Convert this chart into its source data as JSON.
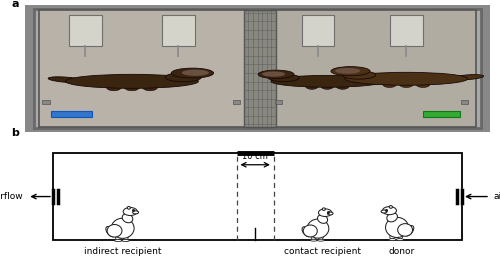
{
  "fig_width": 5.0,
  "fig_height": 2.64,
  "dpi": 100,
  "panel_a_label": "a",
  "panel_b_label": "b",
  "label_fontsize": 8,
  "annotation_fontsize": 6.5,
  "airflow_left": "airflow",
  "airflow_right": "airflow",
  "label_indirect": "indirect recipient",
  "label_contact": "contact recipient",
  "label_donor": "donor",
  "dim_label": "10 cm",
  "bg_color": "#ffffff",
  "box_color": "#000000",
  "dashed_color": "#555555",
  "text_color": "#000000",
  "photo_bg": "#a0a0a0",
  "cage_inner": "#b5b5b5",
  "ferret_color": "#3a2510",
  "grid_color": "#707070"
}
